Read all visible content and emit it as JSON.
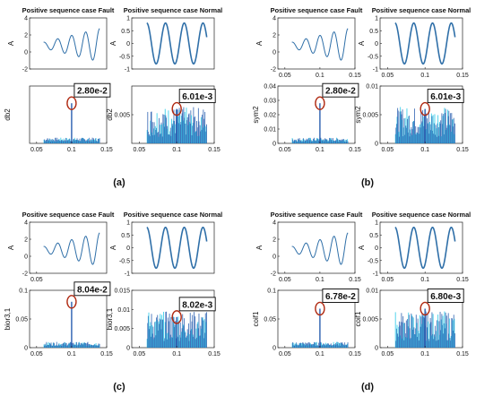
{
  "figure": {
    "panels": [
      {
        "label": "(a)",
        "fault": {
          "title": "Positive sequence case Fault",
          "top": {
            "ylabel": "A",
            "ylim": [
              -2,
              4
            ],
            "yticks": [
              "4",
              "2",
              "0",
              "-2"
            ],
            "xticks": []
          },
          "bottom": {
            "ylabel": "db2",
            "ylim": [
              0,
              0.04
            ],
            "yticks": [],
            "xticks": [
              "0.05",
              "0.1",
              "0.15"
            ],
            "annotation": "2.80e-2",
            "spike_x": 0.1,
            "spike_value": 0.028
          }
        },
        "normal": {
          "title": "Positive sequence case Normal",
          "top": {
            "ylabel": "A",
            "ylim": [
              -1,
              1
            ],
            "yticks": [
              "1",
              "0.5",
              "0",
              "-0.5",
              "-1"
            ],
            "xticks": []
          },
          "bottom": {
            "ylabel": "db2",
            "ylim": [
              0,
              0.01
            ],
            "yticks": [
              "0.005"
            ],
            "xticks": [
              "0.05",
              "0.1",
              "0.15"
            ],
            "annotation": "6.01e-3",
            "spike_x": 0.1,
            "spike_value": 0.006
          }
        }
      },
      {
        "label": "(b)",
        "fault": {
          "title": "Positive sequence case Fault",
          "top": {
            "ylabel": "A",
            "ylim": [
              -2,
              4
            ],
            "yticks": [
              "4",
              "2",
              "0",
              "-2"
            ],
            "xticks": [
              "0.05",
              "0.1",
              "0.15"
            ]
          },
          "bottom": {
            "ylabel": "sym2",
            "ylim": [
              0,
              0.04
            ],
            "yticks": [
              "0.04",
              "0.03",
              "0.02",
              "0.01",
              "0"
            ],
            "xticks": [
              "0.05",
              "0.1",
              "0.15"
            ],
            "annotation": "2.80e-2",
            "spike_x": 0.1,
            "spike_value": 0.028
          }
        },
        "normal": {
          "title": "Positive sequence case Normal",
          "top": {
            "ylabel": "A",
            "ylim": [
              -1,
              1
            ],
            "yticks": [
              "1",
              "0.5",
              "0",
              "-0.5",
              "-1"
            ],
            "xticks": [
              "0.05",
              "0.1",
              "0.15"
            ]
          },
          "bottom": {
            "ylabel": "sym2",
            "ylim": [
              0,
              0.01
            ],
            "yticks": [
              "0.01",
              "0.005",
              "0"
            ],
            "xticks": [
              "0.05",
              "0.1",
              "0.15"
            ],
            "annotation": "6.01e-3",
            "spike_x": 0.1,
            "spike_value": 0.006
          }
        }
      },
      {
        "label": "(c)",
        "fault": {
          "title": "Positive sequence case Fault",
          "top": {
            "ylabel": "A",
            "ylim": [
              -2,
              4
            ],
            "yticks": [
              "4",
              "2",
              "0",
              "-2"
            ],
            "xticks": [
              "0.05"
            ]
          },
          "bottom": {
            "ylabel": "bior3,1",
            "ylim": [
              0,
              0.1
            ],
            "yticks": [
              "0.1",
              "0.05",
              "0"
            ],
            "xticks": [
              "0.05",
              "0.1",
              "0.15"
            ],
            "annotation": "8.04e-2",
            "spike_x": 0.1,
            "spike_value": 0.08
          }
        },
        "normal": {
          "title": "Positive sequence case Normal",
          "top": {
            "ylabel": "A",
            "ylim": [
              -1,
              1
            ],
            "yticks": [
              "1",
              "0.5",
              "0",
              "-0.5",
              "-1"
            ],
            "xticks": []
          },
          "bottom": {
            "ylabel": "bior3,1",
            "ylim": [
              0,
              0.015
            ],
            "yticks": [
              "0.015",
              "0.01",
              "0.005",
              "0"
            ],
            "xticks": [
              "0.05",
              "0.1",
              "0.15"
            ],
            "annotation": "8.02e-3",
            "spike_x": 0.1,
            "spike_value": 0.008
          }
        }
      },
      {
        "label": "(d)",
        "fault": {
          "title": "Positive sequence case Fault",
          "top": {
            "ylabel": "A",
            "ylim": [
              -2,
              4
            ],
            "yticks": [
              "4",
              "2",
              "0",
              "-2"
            ],
            "xticks": [
              "0.05",
              "0.1",
              "0.15"
            ]
          },
          "bottom": {
            "ylabel": "coif1",
            "ylim": [
              0,
              0.1
            ],
            "yticks": [
              "0.1",
              "0.05",
              "0"
            ],
            "xticks": [
              "0.05",
              "0.1",
              "0.15"
            ],
            "annotation": "6.78e-2",
            "spike_x": 0.1,
            "spike_value": 0.068
          }
        },
        "normal": {
          "title": "Positive sequence case Normal",
          "top": {
            "ylabel": "A",
            "ylim": [
              -1,
              1
            ],
            "yticks": [
              "1",
              "0.5",
              "0",
              "-0.5",
              "-1"
            ],
            "xticks": [
              "0.05",
              "0.1",
              "0.15"
            ]
          },
          "bottom": {
            "ylabel": "coif1",
            "ylim": [
              0,
              0.01
            ],
            "yticks": [
              "0.01",
              "0.005",
              "0"
            ],
            "xticks": [
              "0.05",
              "0.1",
              "0.15"
            ],
            "annotation": "6.80e-3",
            "spike_x": 0.1,
            "spike_value": 0.0068
          }
        }
      }
    ],
    "colors": {
      "signal": "#2f6fa8",
      "bars": "#2a5fb0",
      "bars_light": "#21c8e6",
      "marker": "#b02a12",
      "axis": "#222222"
    }
  },
  "chart_data": [
    {
      "type": "line",
      "panel": "(a)",
      "title": "Positive sequence case Fault",
      "xlabel": "",
      "ylabel": "A",
      "xlim": [
        0.04,
        0.15
      ],
      "ylim": [
        -2,
        4
      ],
      "description_of_values": "fault current, growing oscillation",
      "x": [
        0.06,
        0.07,
        0.08,
        0.09,
        0.1,
        0.11,
        0.12,
        0.13,
        0.14
      ],
      "y": [
        1.6,
        0.0,
        1.6,
        -0.2,
        2.5,
        -0.9,
        2.9,
        -1.2,
        0.9
      ]
    },
    {
      "type": "bar",
      "panel": "(a)",
      "title": "",
      "xlabel": "",
      "ylabel": "db2",
      "xlim": [
        0.04,
        0.15
      ],
      "ylim": [
        0,
        0.04
      ],
      "x": [
        0.1
      ],
      "values": [
        0.028
      ],
      "annotation": "2.80e-2"
    },
    {
      "type": "line",
      "panel": "(a)",
      "title": "Positive sequence case Normal",
      "xlabel": "",
      "ylabel": "A",
      "xlim": [
        0.04,
        0.15
      ],
      "ylim": [
        -1,
        1
      ],
      "x": [
        0.06,
        0.0725,
        0.085,
        0.0975,
        0.11,
        0.1225,
        0.135
      ],
      "y": [
        0.8,
        -0.8,
        0.8,
        -0.8,
        0.8,
        -0.8,
        0.8
      ]
    },
    {
      "type": "bar",
      "panel": "(a)",
      "title": "",
      "xlabel": "",
      "ylabel": "db2",
      "xlim": [
        0.04,
        0.15
      ],
      "ylim": [
        0,
        0.01
      ],
      "x": [
        0.1
      ],
      "values": [
        0.006
      ],
      "annotation": "6.01e-3"
    },
    {
      "type": "line",
      "panel": "(b)",
      "title": "Positive sequence case Fault",
      "xlabel": "",
      "ylabel": "A",
      "xlim": [
        0.04,
        0.15
      ],
      "ylim": [
        -2,
        4
      ],
      "x": [
        0.06,
        0.07,
        0.08,
        0.09,
        0.1,
        0.11,
        0.12,
        0.13,
        0.14
      ],
      "y": [
        1.6,
        0.0,
        1.6,
        -0.2,
        2.5,
        -0.9,
        2.9,
        -1.2,
        0.9
      ]
    },
    {
      "type": "bar",
      "panel": "(b)",
      "title": "",
      "xlabel": "",
      "ylabel": "sym2",
      "xlim": [
        0.04,
        0.15
      ],
      "ylim": [
        0,
        0.04
      ],
      "x": [
        0.1
      ],
      "values": [
        0.028
      ],
      "annotation": "2.80e-2"
    },
    {
      "type": "line",
      "panel": "(b)",
      "title": "Positive sequence case Normal",
      "xlabel": "",
      "ylabel": "A",
      "xlim": [
        0.04,
        0.15
      ],
      "ylim": [
        -1,
        1
      ],
      "x": [
        0.06,
        0.0725,
        0.085,
        0.0975,
        0.11,
        0.1225,
        0.135
      ],
      "y": [
        0.8,
        -0.8,
        0.8,
        -0.8,
        0.8,
        -0.8,
        0.8
      ]
    },
    {
      "type": "bar",
      "panel": "(b)",
      "title": "",
      "xlabel": "",
      "ylabel": "sym2",
      "xlim": [
        0.04,
        0.15
      ],
      "ylim": [
        0,
        0.01
      ],
      "x": [
        0.1
      ],
      "values": [
        0.006
      ],
      "annotation": "6.01e-3"
    },
    {
      "type": "line",
      "panel": "(c)",
      "title": "Positive sequence case Fault",
      "xlabel": "",
      "ylabel": "A",
      "xlim": [
        0.04,
        0.15
      ],
      "ylim": [
        -2,
        4
      ],
      "x": [
        0.06,
        0.07,
        0.08,
        0.09,
        0.1,
        0.11,
        0.12,
        0.13,
        0.14
      ],
      "y": [
        1.6,
        0.0,
        1.6,
        -0.2,
        2.5,
        -0.9,
        2.9,
        -1.2,
        0.9
      ]
    },
    {
      "type": "bar",
      "panel": "(c)",
      "title": "",
      "xlabel": "",
      "ylabel": "bior3,1",
      "xlim": [
        0.04,
        0.15
      ],
      "ylim": [
        0,
        0.1
      ],
      "x": [
        0.1
      ],
      "values": [
        0.08
      ],
      "annotation": "8.04e-2"
    },
    {
      "type": "line",
      "panel": "(c)",
      "title": "Positive sequence case Normal",
      "xlabel": "",
      "ylabel": "A",
      "xlim": [
        0.04,
        0.15
      ],
      "ylim": [
        -1,
        1
      ],
      "x": [
        0.06,
        0.0725,
        0.085,
        0.0975,
        0.11,
        0.1225,
        0.135
      ],
      "y": [
        0.8,
        -0.8,
        0.8,
        -0.8,
        0.8,
        -0.8,
        0.8
      ]
    },
    {
      "type": "bar",
      "panel": "(c)",
      "title": "",
      "xlabel": "",
      "ylabel": "bior3,1",
      "xlim": [
        0.04,
        0.15
      ],
      "ylim": [
        0,
        0.015
      ],
      "x": [
        0.1
      ],
      "values": [
        0.008
      ],
      "annotation": "8.02e-3"
    },
    {
      "type": "line",
      "panel": "(d)",
      "title": "Positive sequence case Fault",
      "xlabel": "",
      "ylabel": "A",
      "xlim": [
        0.04,
        0.15
      ],
      "ylim": [
        -2,
        4
      ],
      "x": [
        0.06,
        0.07,
        0.08,
        0.09,
        0.1,
        0.11,
        0.12,
        0.13,
        0.14
      ],
      "y": [
        1.6,
        0.0,
        1.6,
        -0.2,
        2.5,
        -0.9,
        2.9,
        -1.2,
        0.9
      ]
    },
    {
      "type": "bar",
      "panel": "(d)",
      "title": "",
      "xlabel": "",
      "ylabel": "coif1",
      "xlim": [
        0.04,
        0.15
      ],
      "ylim": [
        0,
        0.1
      ],
      "x": [
        0.1
      ],
      "values": [
        0.068
      ],
      "annotation": "6.78e-2"
    },
    {
      "type": "line",
      "panel": "(d)",
      "title": "Positive sequence case Normal",
      "xlabel": "",
      "ylabel": "A",
      "xlim": [
        0.04,
        0.15
      ],
      "ylim": [
        -1,
        1
      ],
      "x": [
        0.06,
        0.0725,
        0.085,
        0.0975,
        0.11,
        0.1225,
        0.135
      ],
      "y": [
        0.8,
        -0.8,
        0.8,
        -0.8,
        0.8,
        -0.8,
        0.8
      ]
    },
    {
      "type": "bar",
      "panel": "(d)",
      "title": "",
      "xlabel": "",
      "ylabel": "coif1",
      "xlim": [
        0.04,
        0.15
      ],
      "ylim": [
        0,
        0.01
      ],
      "x": [
        0.1
      ],
      "values": [
        0.0068
      ],
      "annotation": "6.80e-3"
    }
  ]
}
